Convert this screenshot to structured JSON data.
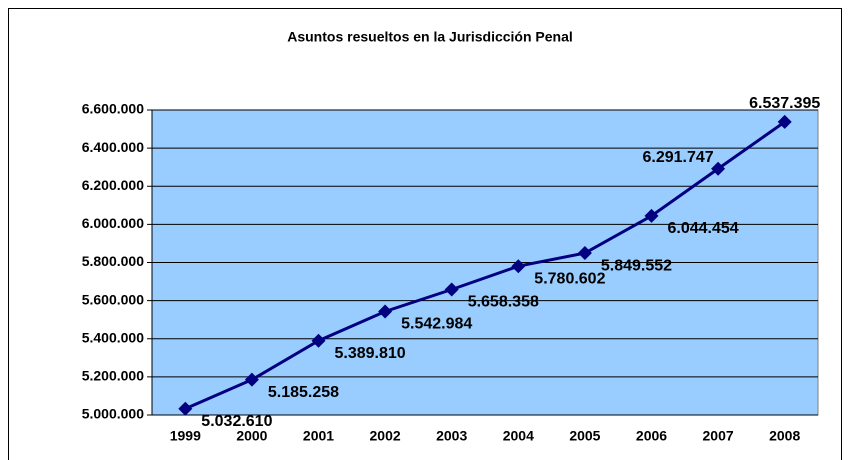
{
  "chart_data": {
    "type": "line",
    "title": "Asuntos resueltos en la Jurisdicción Penal",
    "categories": [
      "1999",
      "2000",
      "2001",
      "2002",
      "2003",
      "2004",
      "2005",
      "2006",
      "2007",
      "2008"
    ],
    "series": [
      {
        "color": "#000080",
        "values": [
          5032610,
          5185258,
          5389810,
          5542984,
          5658358,
          5780602,
          5849552,
          6044454,
          6291747,
          6537395
        ],
        "value_labels": [
          "5.032.610",
          "5.185.258",
          "5.389.810",
          "5.542.984",
          "5.658.358",
          "5.780.602",
          "5.849.552",
          "6.044.454",
          "6.291.747",
          "6.537.395"
        ]
      }
    ],
    "ylim": [
      5000000,
      6600000
    ],
    "yticks": [
      {
        "value": 5000000,
        "label": "5.000.000"
      },
      {
        "value": 5200000,
        "label": "5.200.000"
      },
      {
        "value": 5400000,
        "label": "5.400.000"
      },
      {
        "value": 5600000,
        "label": "5.600.000"
      },
      {
        "value": 5800000,
        "label": "5.800.000"
      },
      {
        "value": 6000000,
        "label": "6.000.000"
      },
      {
        "value": 6200000,
        "label": "6.200.000"
      },
      {
        "value": 6400000,
        "label": "6.400.000"
      },
      {
        "value": 6600000,
        "label": "6.600.000"
      }
    ],
    "grid": true,
    "plot_background": "#99ccff"
  }
}
